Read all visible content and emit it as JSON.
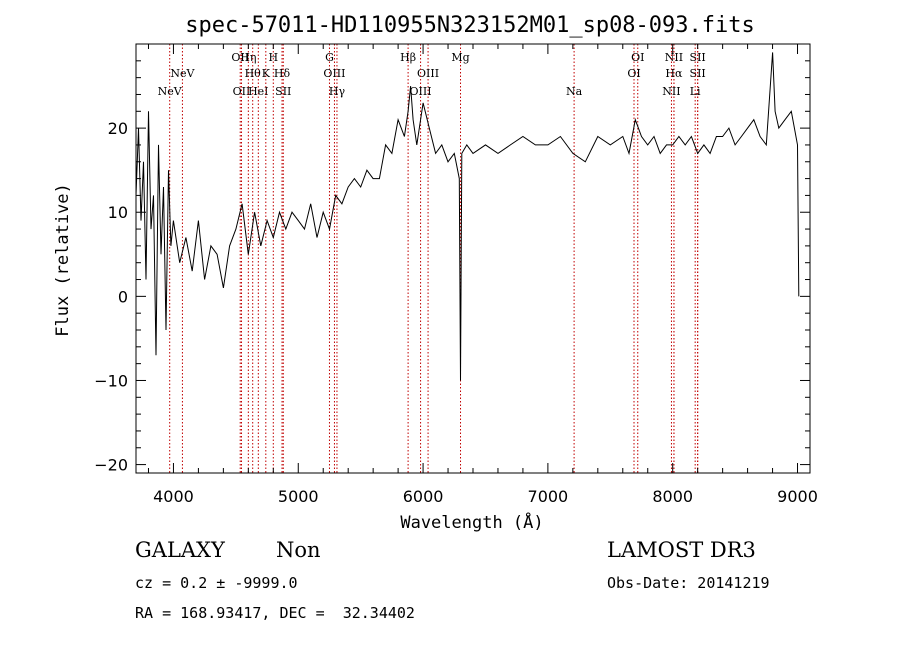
{
  "chart_data": {
    "type": "line",
    "title": "spec-57011-HD110955N323152M01_sp08-093.fits",
    "xlabel": "Wavelength (Å)",
    "ylabel": "Flux (relative)",
    "xlim": [
      3700,
      9100
    ],
    "ylim": [
      -21,
      30
    ],
    "x_ticks": [
      4000,
      5000,
      6000,
      7000,
      8000,
      9000
    ],
    "y_ticks": [
      -20,
      -10,
      0,
      10,
      20
    ],
    "line_color": "#000000",
    "marker_color": "#c00000",
    "series": [
      {
        "x": [
          3700,
          3720,
          3740,
          3760,
          3780,
          3800,
          3820,
          3840,
          3860,
          3880,
          3900,
          3920,
          3940,
          3960,
          3980,
          4000,
          4050,
          4100,
          4150,
          4200,
          4250,
          4300,
          4350,
          4400,
          4450,
          4500,
          4550,
          4600,
          4650,
          4700,
          4750,
          4800,
          4850,
          4900,
          4950,
          5000,
          5050,
          5100,
          5150,
          5200,
          5250,
          5300,
          5350,
          5400,
          5450,
          5500,
          5550,
          5600,
          5650,
          5700,
          5750,
          5800,
          5850,
          5880,
          5900,
          5920,
          5950,
          6000,
          6050,
          6100,
          6150,
          6200,
          6250,
          6290,
          6300,
          6310,
          6350,
          6400,
          6500,
          6600,
          6700,
          6800,
          6900,
          7000,
          7100,
          7200,
          7300,
          7400,
          7500,
          7600,
          7650,
          7700,
          7750,
          7800,
          7850,
          7900,
          7950,
          8000,
          8050,
          8100,
          8150,
          8200,
          8250,
          8300,
          8350,
          8400,
          8450,
          8500,
          8550,
          8600,
          8650,
          8700,
          8750,
          8800,
          8820,
          8850,
          8900,
          8950,
          9000,
          9010
        ],
        "y": [
          12,
          20,
          9,
          16,
          2,
          22,
          8,
          12,
          -7,
          18,
          5,
          13,
          -4,
          15,
          6,
          9,
          4,
          7,
          3,
          9,
          2,
          6,
          5,
          1,
          6,
          8,
          11,
          5,
          10,
          6,
          9,
          7,
          10,
          8,
          10,
          9,
          8,
          11,
          7,
          10,
          8,
          12,
          11,
          13,
          14,
          13,
          15,
          14,
          14,
          18,
          17,
          21,
          19,
          22,
          25,
          21,
          18,
          23,
          20,
          17,
          18,
          16,
          17,
          14,
          -10,
          17,
          18,
          17,
          18,
          17,
          18,
          19,
          18,
          18,
          19,
          17,
          16,
          19,
          18,
          19,
          17,
          21,
          19,
          18,
          19,
          17,
          18,
          18,
          19,
          18,
          19,
          17,
          18,
          17,
          19,
          19,
          20,
          18,
          19,
          20,
          21,
          19,
          18,
          29,
          22,
          20,
          21,
          22,
          18,
          0
        ]
      }
    ],
    "line_markers": [
      {
        "x": 3970,
        "label": "NeV",
        "row": 2
      },
      {
        "x": 4072,
        "label": "NeV",
        "row": 1
      },
      {
        "x": 4535,
        "label": "OII",
        "row": 0
      },
      {
        "x": 4545,
        "label": "OII",
        "row": 2
      },
      {
        "x": 4600,
        "label": "Hη",
        "row": 0
      },
      {
        "x": 4635,
        "label": "Hθ",
        "row": 1
      },
      {
        "x": 4680,
        "label": "HeI",
        "row": 2
      },
      {
        "x": 4740,
        "label": "K",
        "row": 1
      },
      {
        "x": 4800,
        "label": "H",
        "row": 0
      },
      {
        "x": 4870,
        "label": "Hδ",
        "row": 1
      },
      {
        "x": 4880,
        "label": "SII",
        "row": 2
      },
      {
        "x": 5250,
        "label": "G",
        "row": 0
      },
      {
        "x": 5290,
        "label": "OIII",
        "row": 1
      },
      {
        "x": 5310,
        "label": "Hγ",
        "row": 2
      },
      {
        "x": 5880,
        "label": "Hβ",
        "row": 0
      },
      {
        "x": 6040,
        "label": "OIII",
        "row": 1
      },
      {
        "x": 5980,
        "label": "OIII",
        "row": 2
      },
      {
        "x": 6300,
        "label": "Mg",
        "row": 0
      },
      {
        "x": 7210,
        "label": "Na",
        "row": 2
      },
      {
        "x": 7720,
        "label": "OI",
        "row": 0
      },
      {
        "x": 7690,
        "label": "OI",
        "row": 1
      },
      {
        "x": 8010,
        "label": "NII",
        "row": 0
      },
      {
        "x": 8010,
        "label": "Hα",
        "row": 1
      },
      {
        "x": 7990,
        "label": "NII",
        "row": 2
      },
      {
        "x": 8200,
        "label": "SII",
        "row": 0
      },
      {
        "x": 8200,
        "label": "SII",
        "row": 1
      },
      {
        "x": 8180,
        "label": "Li",
        "row": 2
      }
    ]
  },
  "info": {
    "class_label": "GALAXY",
    "subclass_label": "Non",
    "survey_label": "LAMOST DR3",
    "cz_text": "cz = 0.2 ± -9999.0",
    "obs_date_text": "Obs-Date: 20141219",
    "coords_text": "RA = 168.93417, DEC =  32.34402"
  }
}
